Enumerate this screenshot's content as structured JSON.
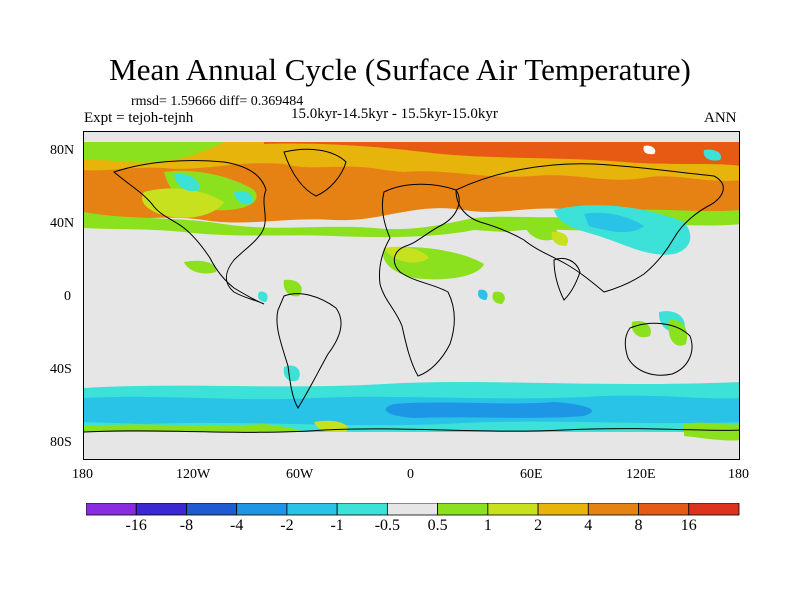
{
  "title": "Mean Annual Cycle (Surface Air Temperature)",
  "stats_line": "rmsd= 1.59666 diff= 0.369484",
  "experiment": "Expt = tejoh-tejnh",
  "period": "15.0kyr-14.5kyr - 15.5kyr-15.0kyr",
  "season": "ANN",
  "map": {
    "projection": "cylindrical-equidistant",
    "lon_range": [
      -180,
      180
    ],
    "lat_range": [
      -90,
      90
    ],
    "land_neutral_color": "#e6e6e6",
    "lat_tick_labels": [
      "80N",
      "40N",
      "0",
      "40S",
      "80S"
    ],
    "lon_tick_labels": [
      "180",
      "120W",
      "60W",
      "0",
      "60E",
      "120E",
      "180"
    ]
  },
  "colorbar": {
    "labels": [
      "-16",
      "-8",
      "-4",
      "-2",
      "-1",
      "-0.5",
      "0.5",
      "1",
      "2",
      "4",
      "8",
      "16"
    ],
    "colors": [
      "#8a2be2",
      "#3c28d2",
      "#1e5ad2",
      "#1e96e6",
      "#28c3e6",
      "#3ce1d7",
      "#e6e6e6",
      "#8ce11e",
      "#c8e11e",
      "#e6b40a",
      "#e68214",
      "#e65a14",
      "#dc321e"
    ]
  }
}
